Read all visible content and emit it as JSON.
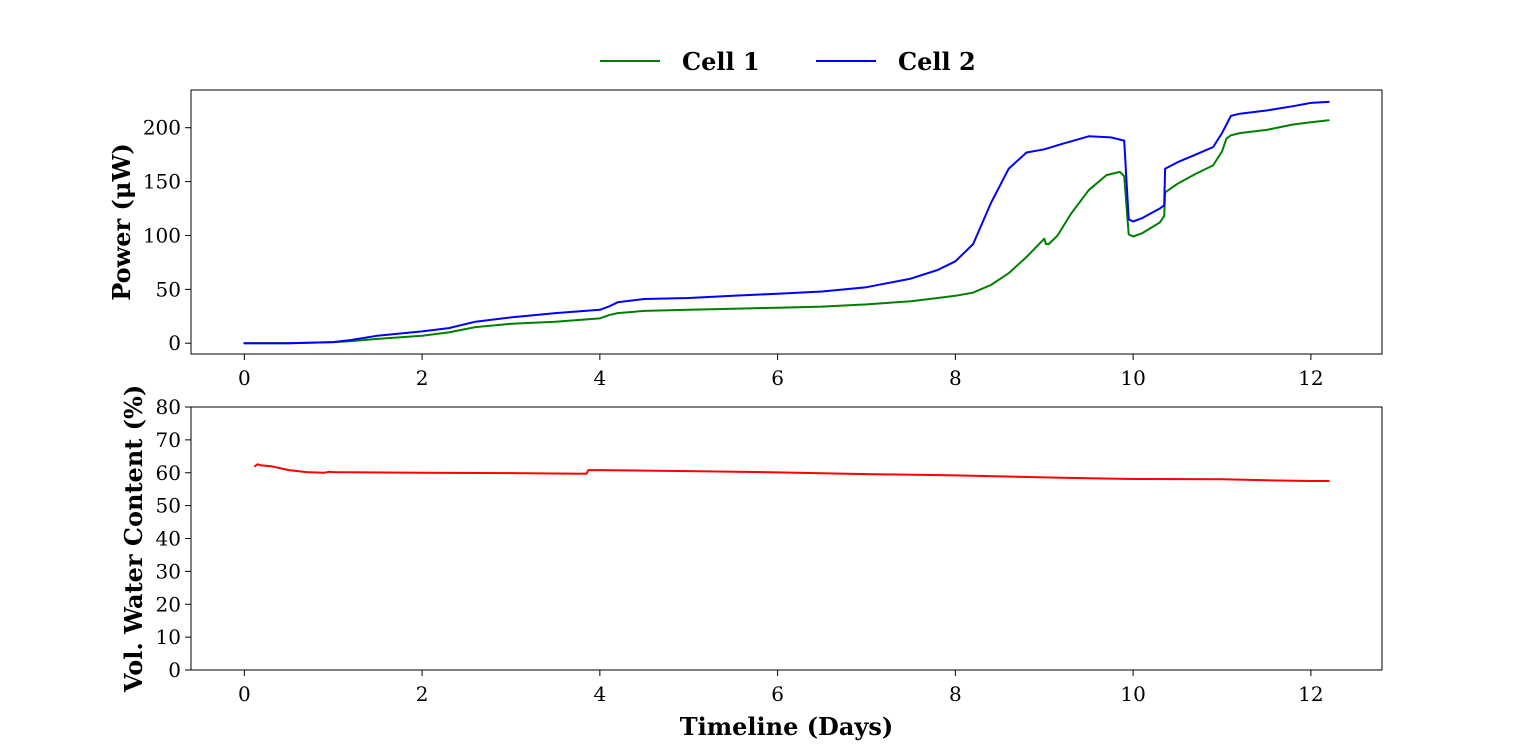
{
  "chart_data": [
    {
      "type": "line",
      "title": "",
      "xlabel": "",
      "ylabel": "Power (μW)",
      "xlim": [
        -0.6,
        12.8
      ],
      "ylim": [
        -10,
        235
      ],
      "xticks": [
        0,
        2,
        4,
        6,
        8,
        10,
        12
      ],
      "yticks": [
        0,
        50,
        100,
        150,
        200
      ],
      "grid": false,
      "legend_position": "top-center",
      "series": [
        {
          "name": "Cell 1",
          "color": "#008000",
          "x": [
            0,
            0.5,
            1.0,
            1.2,
            1.5,
            2.0,
            2.3,
            2.6,
            3.0,
            3.5,
            4.0,
            4.1,
            4.2,
            4.5,
            5.0,
            5.5,
            6.0,
            6.5,
            7.0,
            7.5,
            7.8,
            8.0,
            8.2,
            8.4,
            8.6,
            8.8,
            9.0,
            9.02,
            9.05,
            9.15,
            9.3,
            9.5,
            9.7,
            9.85,
            9.9,
            9.95,
            10.0,
            10.1,
            10.3,
            10.35,
            10.36,
            10.5,
            10.7,
            10.9,
            11.0,
            11.05,
            11.1,
            11.2,
            11.5,
            11.8,
            12.0,
            12.2
          ],
          "y": [
            0,
            0,
            1,
            2,
            4,
            7,
            10,
            15,
            18,
            20,
            23,
            26,
            28,
            30,
            31,
            32,
            33,
            34,
            36,
            39,
            42,
            44,
            47,
            54,
            65,
            80,
            97,
            92,
            92,
            100,
            120,
            142,
            156,
            159,
            155,
            101,
            99,
            102,
            112,
            118,
            140,
            148,
            157,
            165,
            178,
            190,
            193,
            195,
            198,
            203,
            205,
            207
          ]
        },
        {
          "name": "Cell 2",
          "color": "#0000ff",
          "x": [
            0,
            0.5,
            1.0,
            1.2,
            1.5,
            2.0,
            2.3,
            2.6,
            3.0,
            3.5,
            4.0,
            4.1,
            4.2,
            4.5,
            5.0,
            5.5,
            6.0,
            6.5,
            7.0,
            7.5,
            7.8,
            8.0,
            8.2,
            8.4,
            8.6,
            8.8,
            9.0,
            9.2,
            9.5,
            9.75,
            9.9,
            9.95,
            10.0,
            10.1,
            10.3,
            10.35,
            10.36,
            10.5,
            10.7,
            10.9,
            11.0,
            11.1,
            11.2,
            11.5,
            11.8,
            12.0,
            12.2
          ],
          "y": [
            0,
            0,
            1,
            3,
            7,
            11,
            14,
            20,
            24,
            28,
            31,
            34,
            38,
            41,
            42,
            44,
            46,
            48,
            52,
            60,
            68,
            76,
            92,
            130,
            162,
            177,
            180,
            185,
            192,
            191,
            188,
            115,
            113,
            116,
            125,
            128,
            162,
            168,
            175,
            182,
            195,
            211,
            213,
            216,
            220,
            223,
            224
          ]
        }
      ]
    },
    {
      "type": "line",
      "title": "",
      "xlabel": "Timeline (Days)",
      "ylabel": "Vol. Water Content (%)",
      "xlim": [
        -0.6,
        12.8
      ],
      "ylim": [
        0,
        80
      ],
      "xticks": [
        0,
        2,
        4,
        6,
        8,
        10,
        12
      ],
      "yticks": [
        0,
        10,
        20,
        30,
        40,
        50,
        60,
        70,
        80
      ],
      "grid": false,
      "series": [
        {
          "color": "#ff0000",
          "x": [
            0.12,
            0.15,
            0.18,
            0.3,
            0.5,
            0.7,
            0.9,
            0.95,
            1.0,
            2.0,
            3.0,
            3.85,
            3.87,
            4.0,
            5.0,
            6.0,
            7.0,
            8.0,
            9.0,
            9.5,
            10.0,
            11.0,
            11.5,
            12.0,
            12.2
          ],
          "y": [
            62.0,
            62.6,
            62.3,
            62.0,
            60.8,
            60.2,
            60.0,
            60.3,
            60.2,
            60.0,
            59.9,
            59.7,
            60.8,
            60.8,
            60.5,
            60.1,
            59.6,
            59.2,
            58.6,
            58.3,
            58.1,
            58.0,
            57.7,
            57.5,
            57.5
          ]
        }
      ]
    }
  ]
}
